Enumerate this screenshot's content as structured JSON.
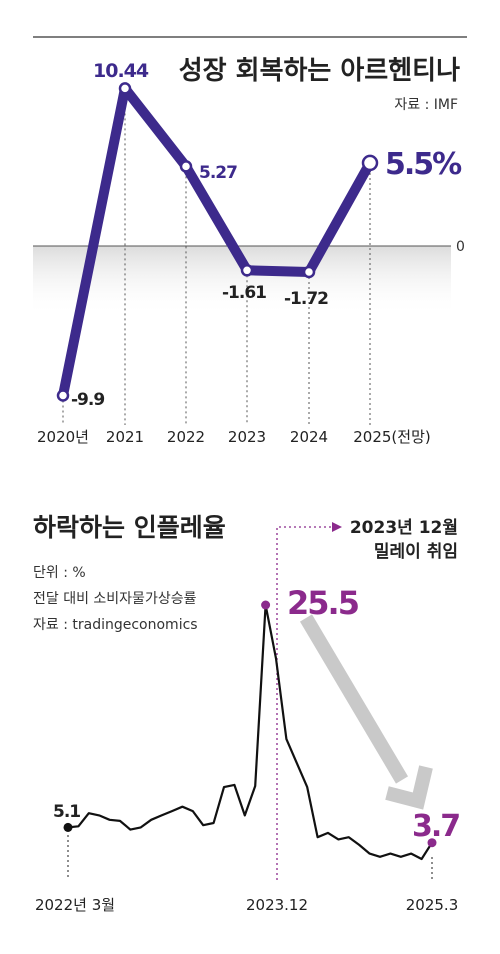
{
  "gdp_chart": {
    "title": "성장 회복하는 아르헨티나",
    "source": "자료 : IMF",
    "zero_label": "0",
    "highlight_color": "#3d2a8c",
    "chart_data": {
      "type": "line",
      "categories": [
        "2020년",
        "2021",
        "2022",
        "2023",
        "2024",
        "2025(전망)"
      ],
      "values": [
        -9.9,
        10.44,
        5.27,
        -1.61,
        -1.72,
        5.5
      ],
      "value_labels": [
        "-9.9",
        "10.44",
        "5.27",
        "-1.61",
        "-1.72",
        "5.5%"
      ],
      "title": "성장 회복하는 아르헨티나",
      "ylim": [
        -11,
        12
      ]
    }
  },
  "inflation_chart": {
    "title": "하락하는 인플레율",
    "unit": "단위 : %",
    "description": "전달 대비 소비자물가상승률",
    "source": "자료 : tradingeconomics",
    "annotation_line1": "2023년 12월",
    "annotation_line2": "밀레이 취임",
    "highlight_color": "#8b2a8c",
    "chart_data": {
      "type": "line",
      "x_start": "2022년 3월",
      "x_ticks": [
        "2022년 3월",
        "2023.12",
        "2025.3"
      ],
      "values": [
        5.1,
        5.2,
        6.4,
        6.2,
        5.8,
        5.7,
        4.9,
        5.1,
        5.8,
        6.2,
        6.6,
        7.0,
        6.6,
        5.3,
        5.5,
        8.8,
        9.0,
        6.2,
        8.9,
        25.5,
        20.6,
        13.2,
        11.0,
        8.8,
        4.2,
        4.6,
        4.0,
        4.2,
        3.5,
        2.7,
        2.4,
        2.7,
        2.4,
        2.7,
        2.2,
        3.7
      ],
      "start_label": "5.1",
      "peak_label": "25.5",
      "end_label": "3.7",
      "peak_index": 19,
      "ylim": [
        0,
        27
      ]
    }
  }
}
